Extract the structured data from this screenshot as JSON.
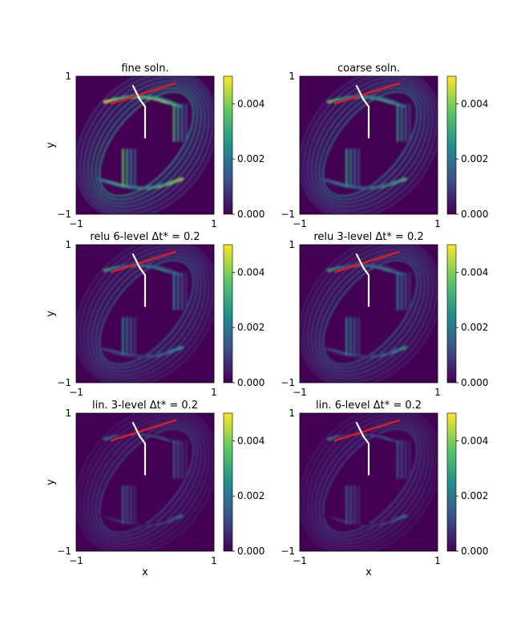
{
  "chart_data": {
    "type": "heatmap",
    "colormap": "viridis",
    "colorbar": {
      "range": [
        0,
        0.005
      ],
      "ticks": [
        "0.000",
        "0.002",
        "0.004"
      ]
    },
    "xlabel": "x",
    "ylabel": "y",
    "xlim": [
      -1,
      1
    ],
    "ylim": [
      -1,
      1
    ],
    "x_ticks": [
      "−1",
      "1"
    ],
    "y_ticks": [
      "−1",
      "1"
    ],
    "overlay_colors": {
      "red_line": "#e41a1c",
      "white_line": "#ffffff"
    },
    "panels": [
      {
        "title": "fine soln.",
        "intensity": 1.0
      },
      {
        "title": "coarse soln.",
        "intensity": 0.8
      },
      {
        "title": "relu 6-level Δt* = 0.2",
        "intensity": 0.65
      },
      {
        "title": "relu 3-level Δt* = 0.2",
        "intensity": 0.65
      },
      {
        "title": "lin. 3-level Δt* = 0.2",
        "intensity": 0.45
      },
      {
        "title": "lin. 6-level Δt* = 0.2",
        "intensity": 0.45
      }
    ]
  }
}
